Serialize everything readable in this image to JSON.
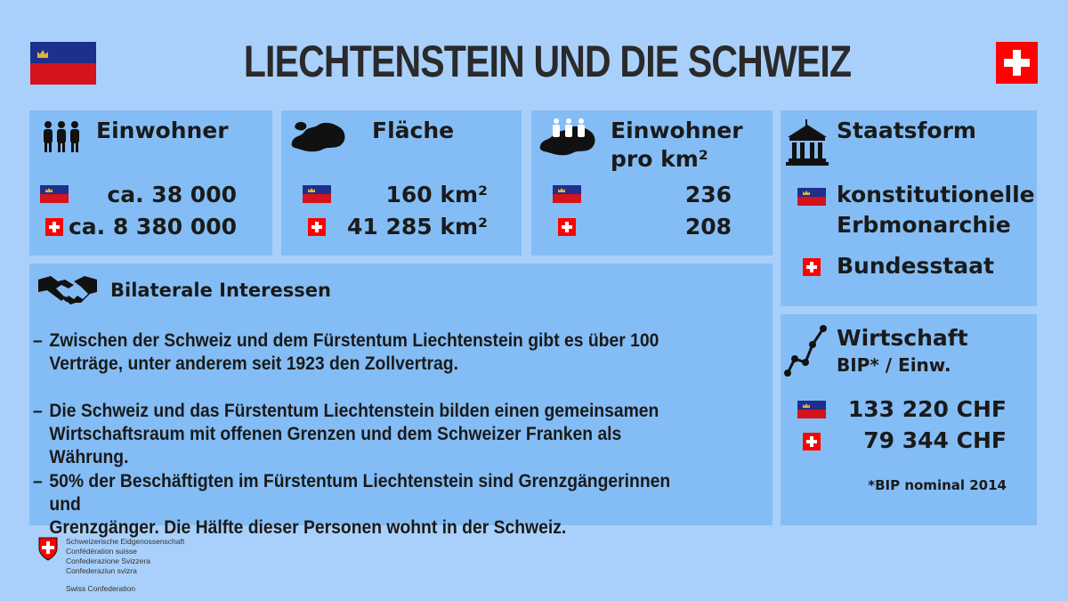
{
  "title": "LIECHTENSTEIN UND DIE SCHWEIZ",
  "colors": {
    "background": "#a9d0fb",
    "panel": "#84bdf5",
    "li_blue": "#1e2f8c",
    "li_red": "#d4131c",
    "ch_red": "#ff0000"
  },
  "icons": {
    "li_flag": "liechtenstein-flag-icon",
    "ch_flag": "swiss-flag-icon"
  },
  "einwohner": {
    "heading": "Einwohner",
    "li": "ca. 38 000",
    "ch": "ca. 8 380 000"
  },
  "flaeche": {
    "heading": "Fläche",
    "li": "160 km²",
    "ch": "41 285 km²"
  },
  "dichte": {
    "heading_line1": "Einwohner",
    "heading_line2": "pro km²",
    "li": "236",
    "ch": "208"
  },
  "staatsform": {
    "heading": "Staatsform",
    "li_line1": "konstitutionelle",
    "li_line2": "Erbmonarchie",
    "ch": "Bundesstaat"
  },
  "bilateral": {
    "heading": "Bilaterale Interessen",
    "items": [
      {
        "dash": "–",
        "line1": "Zwischen der Schweiz und dem Fürstentum Liechtenstein gibt es über 100",
        "line2": "Verträge, unter anderem seit 1923 den Zollvertrag."
      },
      {
        "dash": "–",
        "line1": "Die Schweiz und das Fürstentum Liechtenstein bilden einen gemeinsamen",
        "line2": "Wirtschaftsraum mit offenen Grenzen und dem Schweizer Franken als Währung."
      },
      {
        "dash": "–",
        "line1": "50% der Beschäftigten im Fürstentum Liechtenstein sind Grenzgängerinnen und",
        "line2": "Grenzgänger. Die Hälfte dieser Personen wohnt in der Schweiz."
      }
    ]
  },
  "wirtschaft": {
    "heading": "Wirtschaft",
    "subheading": "BIP* / Einw.",
    "li": "133 220 CHF",
    "ch": "79 344 CHF",
    "footnote": "*BIP nominal 2014"
  },
  "footer": {
    "line1": "Schweizerische Eidgenossenschaft",
    "line2": "Confédération suisse",
    "line3": "Confederazione Svizzera",
    "line4": "Confederaziun svizra",
    "line5": "Swiss Confederation"
  }
}
